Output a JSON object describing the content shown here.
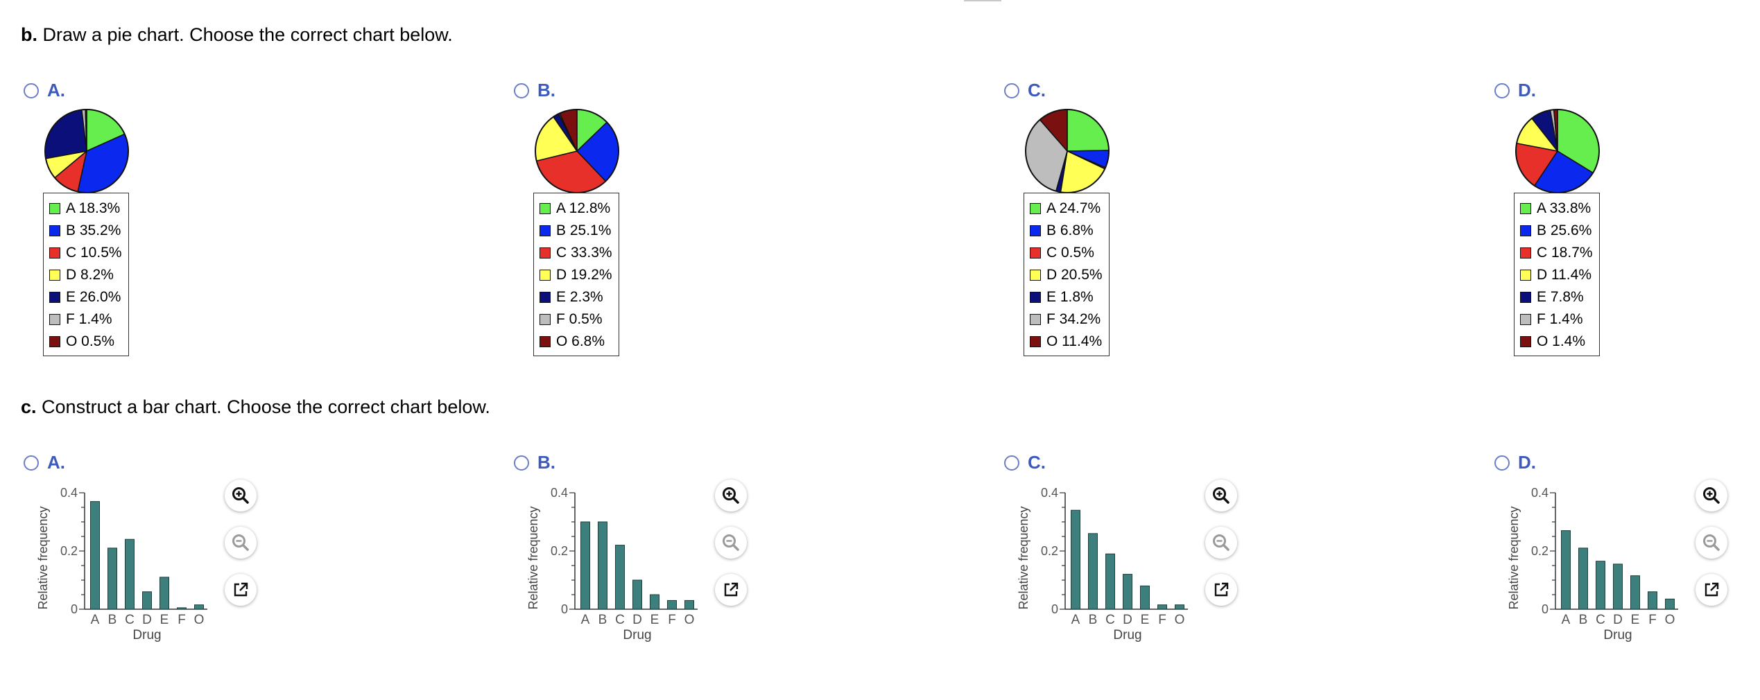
{
  "part_b": {
    "label": "b.",
    "text": "Draw a pie chart. Choose the correct chart below."
  },
  "part_c": {
    "label": "c.",
    "text": "Construct a bar chart. Choose the correct chart below."
  },
  "colors": {
    "A": "#66ee4f",
    "B": "#0a28ee",
    "C": "#e8302a",
    "D": "#ffff55",
    "E": "#0a0f7a",
    "F": "#bdbdbd",
    "O": "#7a1010",
    "bar": "#3d7f7c",
    "radio": "#6b7fc9",
    "option_letter": "#3d5bbd"
  },
  "pie_options": [
    {
      "letter": "A.",
      "legend": [
        {
          "cat": "A",
          "text": "A 18.3%"
        },
        {
          "cat": "B",
          "text": "B 35.2%"
        },
        {
          "cat": "C",
          "text": "C 10.5%"
        },
        {
          "cat": "D",
          "text": "D 8.2%"
        },
        {
          "cat": "E",
          "text": "E 26.0%"
        },
        {
          "cat": "F",
          "text": "F 1.4%"
        },
        {
          "cat": "O",
          "text": "O 0.5%"
        }
      ]
    },
    {
      "letter": "B.",
      "legend": [
        {
          "cat": "A",
          "text": "A 12.8%"
        },
        {
          "cat": "B",
          "text": "B 25.1%"
        },
        {
          "cat": "C",
          "text": "C 33.3%"
        },
        {
          "cat": "D",
          "text": "D 19.2%"
        },
        {
          "cat": "E",
          "text": "E 2.3%"
        },
        {
          "cat": "F",
          "text": "F 0.5%"
        },
        {
          "cat": "O",
          "text": "O 6.8%"
        }
      ]
    },
    {
      "letter": "C.",
      "legend": [
        {
          "cat": "A",
          "text": "A 24.7%"
        },
        {
          "cat": "B",
          "text": "B 6.8%"
        },
        {
          "cat": "C",
          "text": "C 0.5%"
        },
        {
          "cat": "D",
          "text": "D 20.5%"
        },
        {
          "cat": "E",
          "text": "E 1.8%"
        },
        {
          "cat": "F",
          "text": "F 34.2%"
        },
        {
          "cat": "O",
          "text": "O 11.4%"
        }
      ]
    },
    {
      "letter": "D.",
      "legend": [
        {
          "cat": "A",
          "text": "A 33.8%"
        },
        {
          "cat": "B",
          "text": "B 25.6%"
        },
        {
          "cat": "C",
          "text": "C 18.7%"
        },
        {
          "cat": "D",
          "text": "D 11.4%"
        },
        {
          "cat": "E",
          "text": "E 7.8%"
        },
        {
          "cat": "F",
          "text": "F 1.4%"
        },
        {
          "cat": "O",
          "text": "O 1.4%"
        }
      ]
    }
  ],
  "bar_options": [
    {
      "letter": "A."
    },
    {
      "letter": "B."
    },
    {
      "letter": "C."
    },
    {
      "letter": "D."
    }
  ],
  "tools": {
    "zoom_in_icon": "zoom-in-icon",
    "zoom_out_icon": "zoom-out-icon",
    "popout_icon": "external-link-icon"
  },
  "chart_data": [
    {
      "type": "pie",
      "option": "A",
      "categories": [
        "A",
        "B",
        "C",
        "D",
        "E",
        "F",
        "O"
      ],
      "values": [
        18.3,
        35.2,
        10.5,
        8.2,
        26.0,
        1.4,
        0.5
      ]
    },
    {
      "type": "pie",
      "option": "B",
      "categories": [
        "A",
        "B",
        "C",
        "D",
        "E",
        "F",
        "O"
      ],
      "values": [
        12.8,
        25.1,
        33.3,
        19.2,
        2.3,
        0.5,
        6.8
      ]
    },
    {
      "type": "pie",
      "option": "C",
      "categories": [
        "A",
        "B",
        "C",
        "D",
        "E",
        "F",
        "O"
      ],
      "values": [
        24.7,
        6.8,
        0.5,
        20.5,
        1.8,
        34.2,
        11.4
      ]
    },
    {
      "type": "pie",
      "option": "D",
      "categories": [
        "A",
        "B",
        "C",
        "D",
        "E",
        "F",
        "O"
      ],
      "values": [
        33.8,
        25.6,
        18.7,
        11.4,
        7.8,
        1.4,
        1.4
      ]
    },
    {
      "type": "bar",
      "option": "A",
      "categories": [
        "A",
        "B",
        "C",
        "D",
        "E",
        "F",
        "O"
      ],
      "values": [
        0.37,
        0.21,
        0.24,
        0.06,
        0.11,
        0.005,
        0.015
      ],
      "xlabel": "Drug",
      "ylabel": "Relative frequency",
      "ylim": [
        0,
        0.4
      ],
      "yticks": [
        "0",
        "0.2",
        "0.4"
      ]
    },
    {
      "type": "bar",
      "option": "B",
      "categories": [
        "A",
        "B",
        "C",
        "D",
        "E",
        "F",
        "O"
      ],
      "values": [
        0.3,
        0.3,
        0.22,
        0.1,
        0.05,
        0.03,
        0.03
      ],
      "xlabel": "Drug",
      "ylabel": "Relative frequency",
      "ylim": [
        0,
        0.4
      ],
      "yticks": [
        "0",
        "0.2",
        "0.4"
      ]
    },
    {
      "type": "bar",
      "option": "C",
      "categories": [
        "A",
        "B",
        "C",
        "D",
        "E",
        "F",
        "O"
      ],
      "values": [
        0.34,
        0.26,
        0.19,
        0.12,
        0.08,
        0.015,
        0.015
      ],
      "xlabel": "Drug",
      "ylabel": "Relative frequency",
      "ylim": [
        0,
        0.4
      ],
      "yticks": [
        "0",
        "0.2",
        "0.4"
      ]
    },
    {
      "type": "bar",
      "option": "D",
      "categories": [
        "A",
        "B",
        "C",
        "D",
        "E",
        "F",
        "O"
      ],
      "values": [
        0.27,
        0.21,
        0.165,
        0.155,
        0.115,
        0.06,
        0.035
      ],
      "xlabel": "Drug",
      "ylabel": "Relative frequency",
      "ylim": [
        0,
        0.4
      ],
      "yticks": [
        "0",
        "0.2",
        "0.4"
      ]
    }
  ]
}
